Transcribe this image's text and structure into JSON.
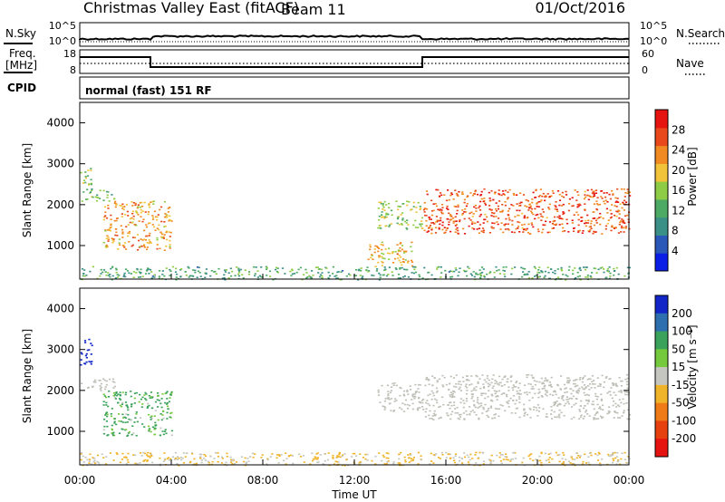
{
  "header": {
    "radar": "Christmas Valley East (fitACF)",
    "beam": "Beam 11",
    "date": "01/Oct/2016"
  },
  "noise_panel": {
    "left_label": "N.Sky",
    "right_label": "N.Search",
    "y_ticks": [
      "10^5",
      "10^0"
    ]
  },
  "freq_panel": {
    "left_label": "Freq.",
    "left_unit": "[MHz]",
    "left_ticks": [
      "18",
      "8"
    ],
    "right_label": "Nave",
    "right_ticks": [
      "60",
      "0"
    ],
    "cpid_label": "CPID",
    "program": "normal (fast) 151 RF"
  },
  "colors": {
    "power_scale": [
      "#0a1ee6",
      "#2a58b8",
      "#3a8f86",
      "#4daa64",
      "#8fcc45",
      "#f0c33a",
      "#f18a22",
      "#e8481b",
      "#e61410"
    ],
    "velocity_scale": [
      "#1226c8",
      "#2e6fb0",
      "#3aa25a",
      "#74c93c",
      "#c6c6c0",
      "#f0b42a",
      "#ee7a18",
      "#e6400f",
      "#e61410"
    ],
    "ground_scatter": "#c0c0b8"
  },
  "chart_data": [
    {
      "type": "heatmap",
      "name": "power",
      "xlabel": "Time UT",
      "ylabel": "Slant Range [km]",
      "x_ticks": [
        "00:00",
        "04:00",
        "08:00",
        "12:00",
        "16:00",
        "20:00",
        "00:00"
      ],
      "xlim": [
        0,
        24
      ],
      "ylim": [
        180,
        4500
      ],
      "y_ticks": [
        1000,
        2000,
        3000,
        4000
      ],
      "colorbar": {
        "label": "Power [dB]",
        "range": [
          0,
          32
        ],
        "ticks": [
          4,
          8,
          12,
          16,
          20,
          24,
          28
        ]
      },
      "regions": [
        {
          "t": [
            0.0,
            0.5
          ],
          "r": [
            2500,
            3000
          ],
          "power": 16
        },
        {
          "t": [
            0.0,
            1.5
          ],
          "r": [
            2100,
            2400
          ],
          "power": 14
        },
        {
          "t": [
            1.0,
            4.0
          ],
          "r": [
            900,
            2100
          ],
          "power": 22
        },
        {
          "t": [
            13.0,
            15.0
          ],
          "r": [
            1400,
            2100
          ],
          "power": 16
        },
        {
          "t": [
            12.5,
            14.5
          ],
          "r": [
            500,
            1100
          ],
          "power": 20
        },
        {
          "t": [
            15.0,
            24.0
          ],
          "r": [
            1300,
            2400
          ],
          "power": 26
        },
        {
          "t": [
            0.0,
            24.0
          ],
          "r": [
            180,
            500
          ],
          "power": 12
        }
      ]
    },
    {
      "type": "heatmap",
      "name": "velocity",
      "xlabel": "Time UT",
      "ylabel": "Slant Range [km]",
      "x_ticks": [
        "00:00",
        "04:00",
        "08:00",
        "12:00",
        "16:00",
        "20:00",
        "00:00"
      ],
      "xlim": [
        0,
        24
      ],
      "ylim": [
        180,
        4500
      ],
      "y_ticks": [
        1000,
        2000,
        3000,
        4000
      ],
      "colorbar": {
        "label": "Velocity [m s⁻¹]",
        "ticks": [
          "200",
          "100",
          "50",
          "15",
          "-15",
          "-50",
          "-100",
          "-200"
        ]
      },
      "regions": [
        {
          "t": [
            0.0,
            0.5
          ],
          "r": [
            2600,
            3300
          ],
          "velocity": 220
        },
        {
          "t": [
            0.0,
            1.5
          ],
          "r": [
            2000,
            2300
          ],
          "velocity": 0
        },
        {
          "t": [
            1.0,
            4.0
          ],
          "r": [
            900,
            2000
          ],
          "velocity": 40
        },
        {
          "t": [
            13.0,
            15.0
          ],
          "r": [
            1500,
            2200
          ],
          "velocity": 0
        },
        {
          "t": [
            15.0,
            24.0
          ],
          "r": [
            1300,
            2400
          ],
          "velocity": 0
        },
        {
          "t": [
            0.0,
            24.0
          ],
          "r": [
            180,
            500
          ],
          "velocity": -20
        }
      ]
    }
  ]
}
